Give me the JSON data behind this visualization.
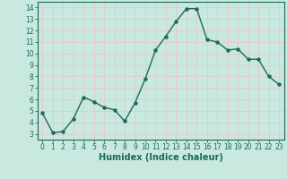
{
  "x": [
    0,
    1,
    2,
    3,
    4,
    5,
    6,
    7,
    8,
    9,
    10,
    11,
    12,
    13,
    14,
    15,
    16,
    17,
    18,
    19,
    20,
    21,
    22,
    23
  ],
  "y": [
    4.8,
    3.1,
    3.2,
    4.3,
    6.2,
    5.8,
    5.3,
    5.1,
    4.1,
    5.7,
    7.8,
    10.3,
    11.5,
    12.8,
    13.9,
    13.9,
    11.2,
    11.0,
    10.3,
    10.4,
    9.5,
    9.5,
    8.0,
    7.3
  ],
  "line_color": "#1a6b5a",
  "marker": "o",
  "marker_size": 2.2,
  "line_width": 1.0,
  "bg_color": "#c8e8e0",
  "grid_color": "#e8c8c8",
  "xlabel": "Humidex (Indice chaleur)",
  "ylabel": "",
  "xlim": [
    -0.5,
    23.5
  ],
  "ylim": [
    2.5,
    14.5
  ],
  "yticks": [
    3,
    4,
    5,
    6,
    7,
    8,
    9,
    10,
    11,
    12,
    13,
    14
  ],
  "xticks": [
    0,
    1,
    2,
    3,
    4,
    5,
    6,
    7,
    8,
    9,
    10,
    11,
    12,
    13,
    14,
    15,
    16,
    17,
    18,
    19,
    20,
    21,
    22,
    23
  ],
  "tick_fontsize": 5.5,
  "label_fontsize": 7.0,
  "axis_color": "#1a6b5a"
}
